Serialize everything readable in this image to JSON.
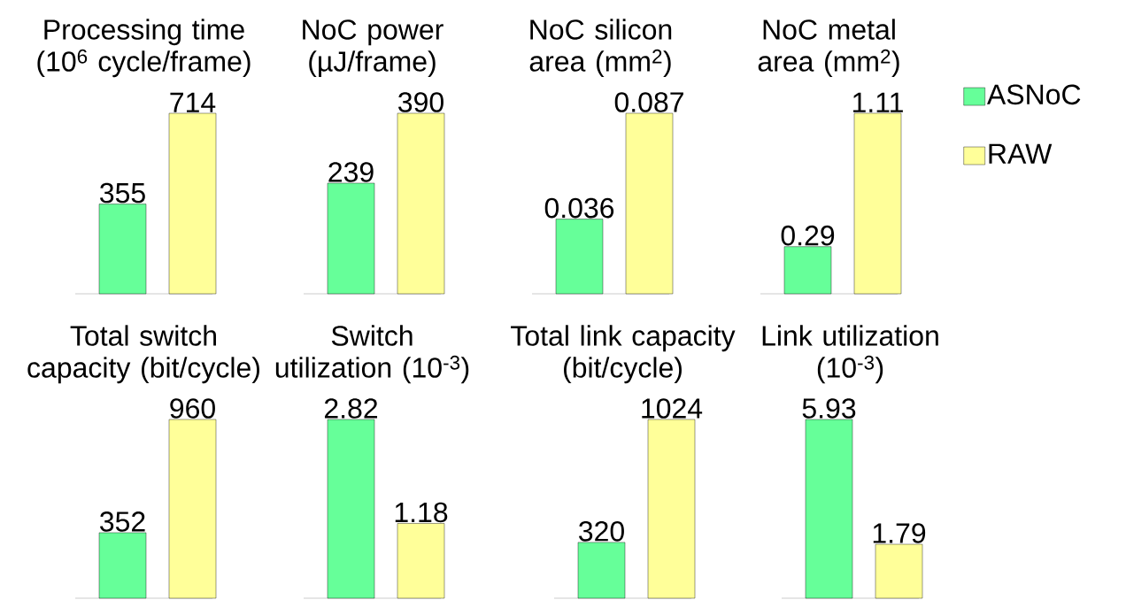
{
  "chart_data": [
    {
      "type": "bar",
      "title": "Processing time (10$^{6}$ cycle/frame)",
      "categories": [
        null
      ],
      "data_labels": true,
      "series": [
        {
          "color": "#66ff99",
          "values": [
            355
          ]
        },
        {
          "color": "#ffff99",
          "values": [
            714
          ]
        }
      ]
    },
    {
      "type": "bar",
      "title": "NoC power (µJ/frame)",
      "categories": [
        null
      ],
      "data_labels": true,
      "series": [
        {
          "color": "#66ff99",
          "values": [
            239
          ]
        },
        {
          "color": "#ffff99",
          "values": [
            390
          ]
        }
      ]
    },
    {
      "type": "bar",
      "title": "NoC silicon area (mm$^{2}$)",
      "categories": [
        null
      ],
      "data_labels": true,
      "series": [
        {
          "color": "#66ff99",
          "values": [
            0.036
          ]
        },
        {
          "color": "#ffff99",
          "values": [
            0.087
          ]
        }
      ]
    },
    {
      "type": "bar",
      "title": "NoC metal area (mm$^{2}$)",
      "categories": [
        null
      ],
      "data_labels": true,
      "legend": "right",
      "series": [
        {
          "name": "ASNoC",
          "color": "#66ff99",
          "values": [
            0.29
          ]
        },
        {
          "name": "RAW",
          "color": "#ffff99",
          "values": [
            1.11
          ]
        }
      ]
    },
    {
      "type": "bar",
      "title": "Total switch capacity (bit/cycle)",
      "categories": [
        null
      ],
      "data_labels": true,
      "series": [
        {
          "color": "#66ff99",
          "values": [
            352
          ]
        },
        {
          "color": "#ffff99",
          "values": [
            960
          ]
        }
      ]
    },
    {
      "type": "bar",
      "title": "Switch utilization (10$^{-3}$)",
      "categories": [
        null
      ],
      "data_labels": true,
      "series": [
        {
          "color": "#66ff99",
          "values": [
            2.82
          ]
        },
        {
          "color": "#ffff99",
          "values": [
            1.18
          ]
        }
      ]
    },
    {
      "type": "bar",
      "title": "Total link capacity (bit/cycle)",
      "categories": [
        null
      ],
      "data_labels": true,
      "series": [
        {
          "color": "#66ff99",
          "values": [
            320
          ]
        },
        {
          "color": "#ffff99",
          "values": [
            1024
          ]
        }
      ]
    },
    {
      "type": "bar",
      "title": "Link utilization (10$^{-3}$)",
      "categories": [
        null
      ],
      "data_labels": true,
      "series": [
        {
          "color": "#66ff99",
          "values": [
            5.93
          ]
        },
        {
          "color": "#ffff99",
          "values": [
            1.79
          ]
        }
      ]
    }
  ]
}
